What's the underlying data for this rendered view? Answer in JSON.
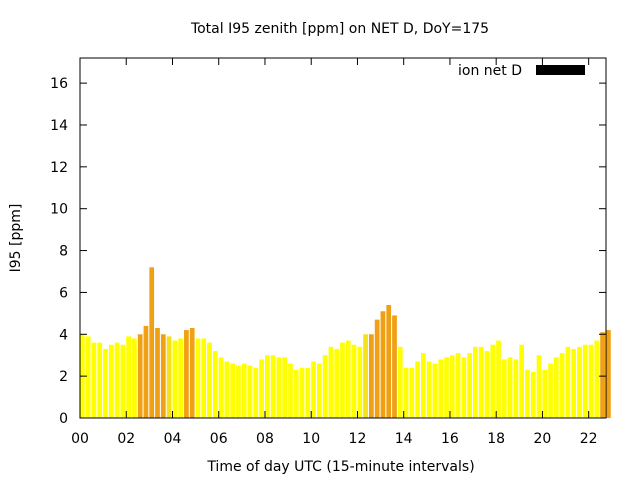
{
  "chart_data": {
    "type": "bar",
    "title": "Total I95 zenith [ppm] on NET D, DoY=175",
    "xlabel": "Time of day UTC (15-minute intervals)",
    "ylabel": "I95 [ppm]",
    "xlim": [
      0,
      22.75
    ],
    "ylim": [
      0,
      17.2
    ],
    "x_ticks": [
      0,
      2,
      4,
      6,
      8,
      10,
      12,
      14,
      16,
      18,
      20,
      22
    ],
    "x_tick_labels": [
      "00",
      "02",
      "04",
      "06",
      "08",
      "10",
      "12",
      "14",
      "16",
      "18",
      "20",
      "22"
    ],
    "y_ticks": [
      0,
      2,
      4,
      6,
      8,
      10,
      12,
      14,
      16
    ],
    "y_tick_labels": [
      "0",
      "2",
      "4",
      "6",
      "8",
      "10",
      "12",
      "14",
      "16"
    ],
    "legend": {
      "label": "ion net D",
      "color": "#000000",
      "position": "top-right"
    },
    "grid": false,
    "bar_interval_hours": 0.25,
    "colors": {
      "low": "#ffff00",
      "mid": "#f5e21c",
      "high": "#f0a014"
    },
    "series": [
      {
        "values": [
          4.0,
          3.9,
          3.6,
          3.6,
          3.3,
          3.5,
          3.6,
          3.5,
          3.9,
          3.8,
          4.0,
          4.4,
          7.2,
          4.3,
          4.0,
          3.9,
          3.7,
          3.8,
          4.2,
          4.3,
          3.8,
          3.8,
          3.6,
          3.2,
          2.9,
          2.7,
          2.6,
          2.5,
          2.6,
          2.5,
          2.4,
          2.8,
          3.0,
          3.0,
          2.9,
          2.9,
          2.6,
          2.3,
          2.4,
          2.4,
          2.7,
          2.6,
          3.0,
          3.4,
          3.3,
          3.6,
          3.7,
          3.5,
          3.4,
          4.0,
          4.0,
          4.7,
          5.1,
          5.4,
          4.9,
          3.4,
          2.4,
          2.4,
          2.7,
          3.1,
          2.7,
          2.6,
          2.8,
          2.9,
          3.0,
          3.1,
          2.9,
          3.1,
          3.4,
          3.4,
          3.2,
          3.5,
          3.7,
          2.8,
          2.9,
          2.8,
          3.5,
          2.3,
          2.2,
          3.0,
          2.3,
          2.6,
          2.9,
          3.1,
          3.4,
          3.3,
          3.4,
          3.5,
          3.5,
          3.7,
          4.1,
          4.2
        ],
        "color_levels": [
          "low",
          "low",
          "low",
          "low",
          "low",
          "low",
          "low",
          "low",
          "low",
          "low",
          "high",
          "high",
          "high",
          "high",
          "high",
          "mid",
          "low",
          "low",
          "high",
          "high",
          "low",
          "low",
          "low",
          "low",
          "low",
          "low",
          "low",
          "low",
          "low",
          "low",
          "low",
          "low",
          "low",
          "low",
          "low",
          "low",
          "low",
          "low",
          "low",
          "low",
          "low",
          "low",
          "low",
          "low",
          "low",
          "low",
          "low",
          "low",
          "low",
          "mid",
          "high",
          "high",
          "high",
          "high",
          "high",
          "low",
          "low",
          "low",
          "low",
          "low",
          "low",
          "low",
          "low",
          "low",
          "low",
          "low",
          "low",
          "low",
          "low",
          "low",
          "low",
          "low",
          "low",
          "low",
          "low",
          "low",
          "low",
          "low",
          "low",
          "low",
          "low",
          "low",
          "low",
          "low",
          "low",
          "low",
          "low",
          "low",
          "low",
          "low",
          "high",
          "high"
        ]
      }
    ]
  }
}
